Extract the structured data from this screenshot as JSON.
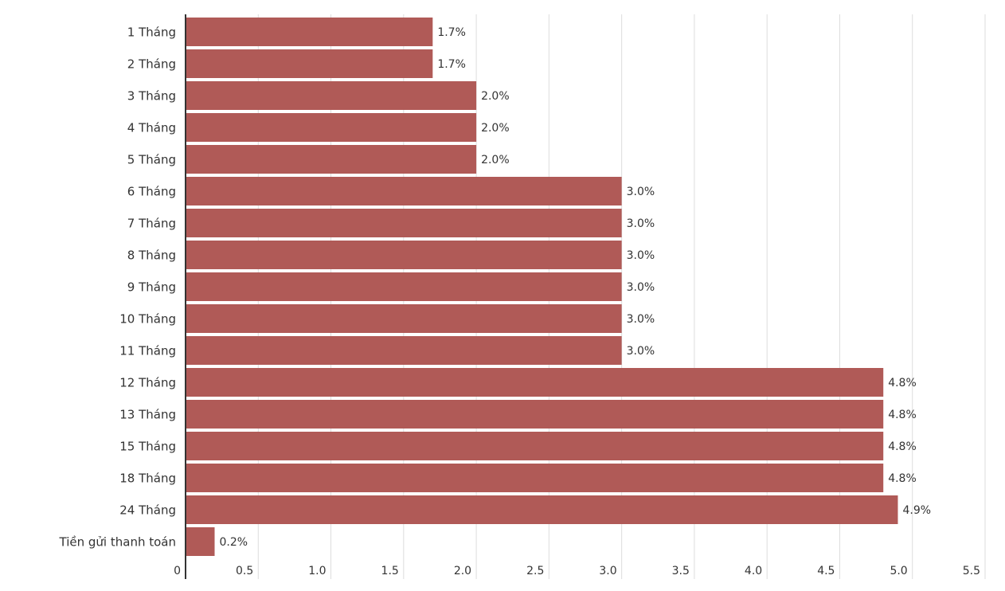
{
  "chart_data": {
    "type": "bar",
    "orientation": "horizontal",
    "categories": [
      "1 Tháng",
      "2 Tháng",
      "3 Tháng",
      "4 Tháng",
      "5 Tháng",
      "6 Tháng",
      "7 Tháng",
      "8 Tháng",
      "9 Tháng",
      "10 Tháng",
      "11 Tháng",
      "12 Tháng",
      "13 Tháng",
      "15 Tháng",
      "18 Tháng",
      "24 Tháng",
      "Tiền gửi thanh toán"
    ],
    "values": [
      1.7,
      1.7,
      2.0,
      2.0,
      2.0,
      3.0,
      3.0,
      3.0,
      3.0,
      3.0,
      3.0,
      4.8,
      4.8,
      4.8,
      4.8,
      4.9,
      0.2
    ],
    "value_labels": [
      "1.7%",
      "1.7%",
      "2.0%",
      "2.0%",
      "2.0%",
      "3.0%",
      "3.0%",
      "3.0%",
      "3.0%",
      "3.0%",
      "3.0%",
      "4.8%",
      "4.8%",
      "4.8%",
      "4.8%",
      "4.9%",
      "0.2%"
    ],
    "color": "#b05a57",
    "xlim": [
      0,
      5.5
    ],
    "xticks": [
      0,
      0.5,
      {
        "value": 1,
        "label": "1.0"
      },
      1.5,
      {
        "value": 2,
        "label": "2.0"
      },
      2.5,
      {
        "value": 3,
        "label": "3.0"
      },
      3.5,
      {
        "value": 4,
        "label": "4.0"
      },
      4.5,
      {
        "value": 5,
        "label": "5.0"
      },
      5.5
    ],
    "grid": true
  }
}
